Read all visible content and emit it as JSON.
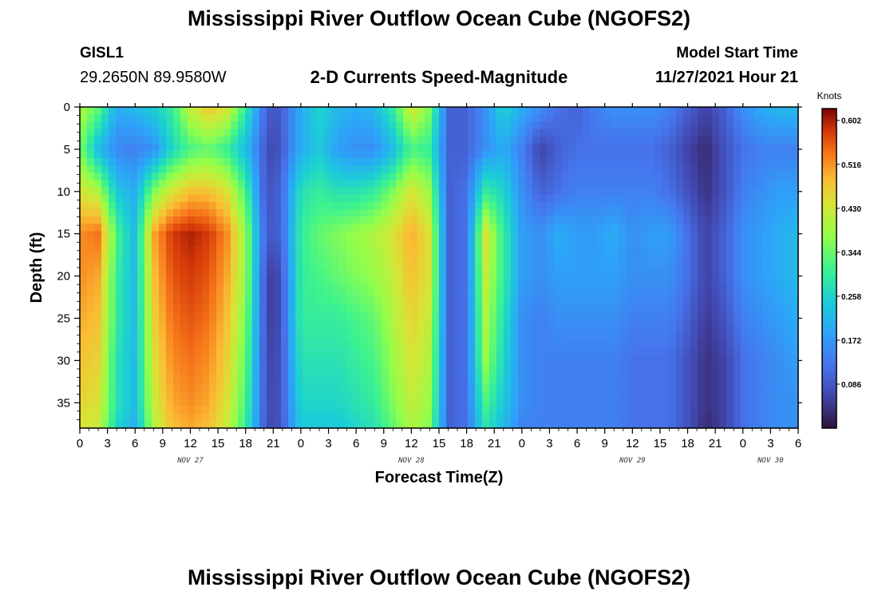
{
  "header": {
    "title": "Mississippi River Outflow Ocean Cube (NGOFS2)",
    "station": "GISL1",
    "coords": "29.2650N  89.9580W",
    "subtitle": "2-D Currents Speed-Magnitude",
    "model_label": "Model Start Time",
    "model_time": "11/27/2021 Hour 21"
  },
  "footer": {
    "title": "Mississippi River Outflow Ocean Cube (NGOFS2)"
  },
  "chart_data": {
    "type": "heatmap",
    "title": "2-D Currents Speed-Magnitude",
    "xlabel": "Forecast Time(Z)",
    "ylabel": "Depth (ft)",
    "x_tick_labels": [
      "0",
      "3",
      "6",
      "9",
      "12",
      "15",
      "18",
      "21",
      "0",
      "3",
      "6",
      "9",
      "12",
      "15",
      "18",
      "21",
      "0",
      "3",
      "6",
      "9",
      "12",
      "15",
      "18",
      "21",
      "0",
      "3",
      "6"
    ],
    "x_range_hours": [
      0,
      78
    ],
    "day_labels": [
      {
        "label": "NOV 27",
        "hour": 12
      },
      {
        "label": "NOV 28",
        "hour": 36
      },
      {
        "label": "NOV 29",
        "hour": 60
      },
      {
        "label": "NOV 30",
        "hour": 75
      }
    ],
    "y_ticks": [
      0,
      5,
      10,
      15,
      20,
      25,
      30,
      35
    ],
    "y_range": [
      0,
      38
    ],
    "y_reversed": true,
    "colorbar": {
      "label": "Knots",
      "ticks": [
        "0.602",
        "0.516",
        "0.430",
        "0.344",
        "0.258",
        "0.172",
        "0.086"
      ],
      "tick_values": [
        0.602,
        0.516,
        0.43,
        0.344,
        0.258,
        0.172,
        0.086
      ],
      "min": 0,
      "max": 0.625,
      "colormap": "turbo"
    },
    "depth_levels": [
      0,
      5,
      10,
      15,
      20,
      25,
      30,
      35,
      38
    ],
    "time_hours": [
      0,
      2,
      4,
      6,
      8,
      10,
      12,
      14,
      16,
      18,
      20,
      21,
      22,
      24,
      26,
      28,
      30,
      32,
      34,
      36,
      38,
      40,
      42,
      44,
      46,
      48,
      50,
      52,
      54,
      56,
      58,
      60,
      62,
      64,
      66,
      68,
      70,
      72,
      74,
      76,
      78
    ],
    "speed_knots": [
      [
        0.4,
        0.34,
        0.2,
        0.22,
        0.25,
        0.3,
        0.42,
        0.48,
        0.44,
        0.3,
        0.12,
        0.08,
        0.1,
        0.2,
        0.26,
        0.22,
        0.2,
        0.22,
        0.3,
        0.44,
        0.36,
        0.1,
        0.1,
        0.16,
        0.26,
        0.2,
        0.16,
        0.12,
        0.1,
        0.14,
        0.16,
        0.16,
        0.16,
        0.14,
        0.1,
        0.06,
        0.1,
        0.16,
        0.2,
        0.22,
        0.22
      ],
      [
        0.36,
        0.22,
        0.15,
        0.14,
        0.16,
        0.26,
        0.32,
        0.34,
        0.3,
        0.22,
        0.1,
        0.06,
        0.1,
        0.2,
        0.24,
        0.18,
        0.16,
        0.16,
        0.22,
        0.32,
        0.3,
        0.1,
        0.1,
        0.16,
        0.2,
        0.14,
        0.06,
        0.1,
        0.12,
        0.12,
        0.12,
        0.12,
        0.12,
        0.1,
        0.06,
        0.03,
        0.08,
        0.12,
        0.14,
        0.14,
        0.14
      ],
      [
        0.44,
        0.4,
        0.24,
        0.2,
        0.36,
        0.44,
        0.48,
        0.48,
        0.44,
        0.32,
        0.1,
        0.08,
        0.12,
        0.28,
        0.3,
        0.28,
        0.28,
        0.3,
        0.36,
        0.44,
        0.38,
        0.1,
        0.12,
        0.3,
        0.26,
        0.16,
        0.1,
        0.12,
        0.14,
        0.14,
        0.14,
        0.14,
        0.14,
        0.12,
        0.08,
        0.04,
        0.08,
        0.14,
        0.16,
        0.18,
        0.18
      ],
      [
        0.52,
        0.54,
        0.32,
        0.22,
        0.5,
        0.58,
        0.6,
        0.58,
        0.52,
        0.38,
        0.12,
        0.08,
        0.12,
        0.3,
        0.34,
        0.36,
        0.38,
        0.4,
        0.44,
        0.5,
        0.44,
        0.1,
        0.12,
        0.44,
        0.3,
        0.18,
        0.16,
        0.2,
        0.18,
        0.18,
        0.2,
        0.16,
        0.18,
        0.18,
        0.12,
        0.06,
        0.1,
        0.16,
        0.18,
        0.2,
        0.22
      ],
      [
        0.52,
        0.5,
        0.3,
        0.22,
        0.48,
        0.56,
        0.58,
        0.56,
        0.5,
        0.38,
        0.1,
        0.04,
        0.1,
        0.3,
        0.32,
        0.34,
        0.36,
        0.38,
        0.42,
        0.48,
        0.44,
        0.1,
        0.12,
        0.42,
        0.3,
        0.18,
        0.16,
        0.18,
        0.18,
        0.18,
        0.18,
        0.16,
        0.16,
        0.16,
        0.12,
        0.06,
        0.1,
        0.16,
        0.18,
        0.2,
        0.22
      ],
      [
        0.5,
        0.48,
        0.3,
        0.22,
        0.46,
        0.54,
        0.56,
        0.54,
        0.48,
        0.36,
        0.1,
        0.04,
        0.1,
        0.3,
        0.3,
        0.3,
        0.32,
        0.34,
        0.4,
        0.46,
        0.42,
        0.1,
        0.12,
        0.4,
        0.28,
        0.16,
        0.14,
        0.16,
        0.16,
        0.16,
        0.16,
        0.14,
        0.14,
        0.14,
        0.1,
        0.05,
        0.08,
        0.14,
        0.16,
        0.18,
        0.2
      ],
      [
        0.48,
        0.46,
        0.28,
        0.22,
        0.44,
        0.52,
        0.54,
        0.52,
        0.46,
        0.34,
        0.1,
        0.05,
        0.1,
        0.28,
        0.28,
        0.28,
        0.3,
        0.32,
        0.38,
        0.44,
        0.4,
        0.1,
        0.12,
        0.38,
        0.26,
        0.16,
        0.14,
        0.14,
        0.14,
        0.14,
        0.14,
        0.12,
        0.12,
        0.12,
        0.08,
        0.04,
        0.06,
        0.12,
        0.14,
        0.16,
        0.18
      ],
      [
        0.46,
        0.44,
        0.28,
        0.22,
        0.42,
        0.5,
        0.52,
        0.5,
        0.44,
        0.32,
        0.1,
        0.06,
        0.1,
        0.26,
        0.26,
        0.26,
        0.28,
        0.3,
        0.36,
        0.42,
        0.38,
        0.1,
        0.12,
        0.32,
        0.24,
        0.16,
        0.14,
        0.14,
        0.14,
        0.14,
        0.14,
        0.12,
        0.12,
        0.12,
        0.08,
        0.04,
        0.06,
        0.12,
        0.14,
        0.16,
        0.16
      ],
      [
        0.44,
        0.42,
        0.26,
        0.2,
        0.4,
        0.48,
        0.5,
        0.48,
        0.42,
        0.3,
        0.1,
        0.06,
        0.1,
        0.24,
        0.24,
        0.24,
        0.26,
        0.28,
        0.34,
        0.4,
        0.36,
        0.1,
        0.12,
        0.28,
        0.22,
        0.14,
        0.14,
        0.14,
        0.14,
        0.14,
        0.14,
        0.12,
        0.12,
        0.12,
        0.08,
        0.03,
        0.06,
        0.12,
        0.14,
        0.16,
        0.16
      ]
    ]
  }
}
